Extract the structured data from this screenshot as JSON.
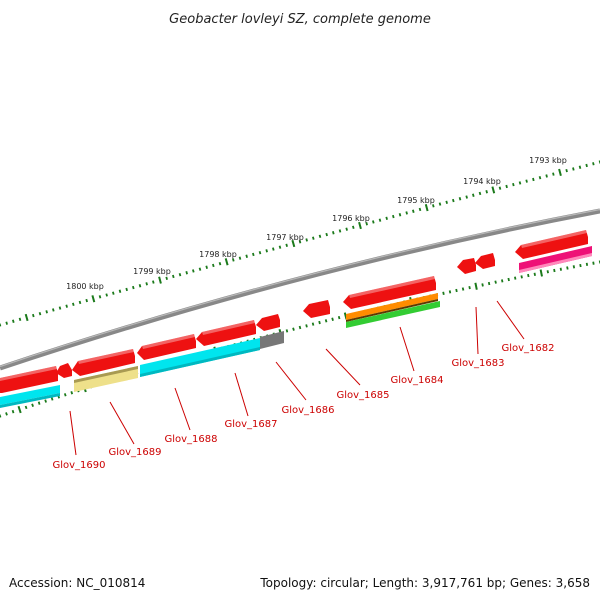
{
  "title": "Geobacter lovleyi SZ, complete genome",
  "footer": {
    "accession": "Accession: NC_010814",
    "summary": "Topology: circular; Length: 3,917,761 bp; Genes: 3,658"
  },
  "colors": {
    "backbone": "#888888",
    "tick": "#1b7a1b",
    "gene_label": "#cc0000",
    "gene_fill": "#ee1111",
    "cds_cyan": "#00e5ee",
    "cds_khaki": "#eee08a",
    "cds_gray": "#777777",
    "cds_orange": "#ff8c00",
    "cds_green": "#33cc33",
    "cds_magenta": "#ee1177"
  },
  "kbp_ticks": [
    "1800 kbp",
    "1799 kbp",
    "1798 kbp",
    "1797 kbp",
    "1796 kbp",
    "1795 kbp",
    "1794 kbp",
    "1793 kbp"
  ],
  "genes": [
    "Glov_1690",
    "Glov_1689",
    "Glov_1688",
    "Glov_1687",
    "Glov_1686",
    "Glov_1685",
    "Glov_1684",
    "Glov_1683",
    "Glov_1682"
  ]
}
